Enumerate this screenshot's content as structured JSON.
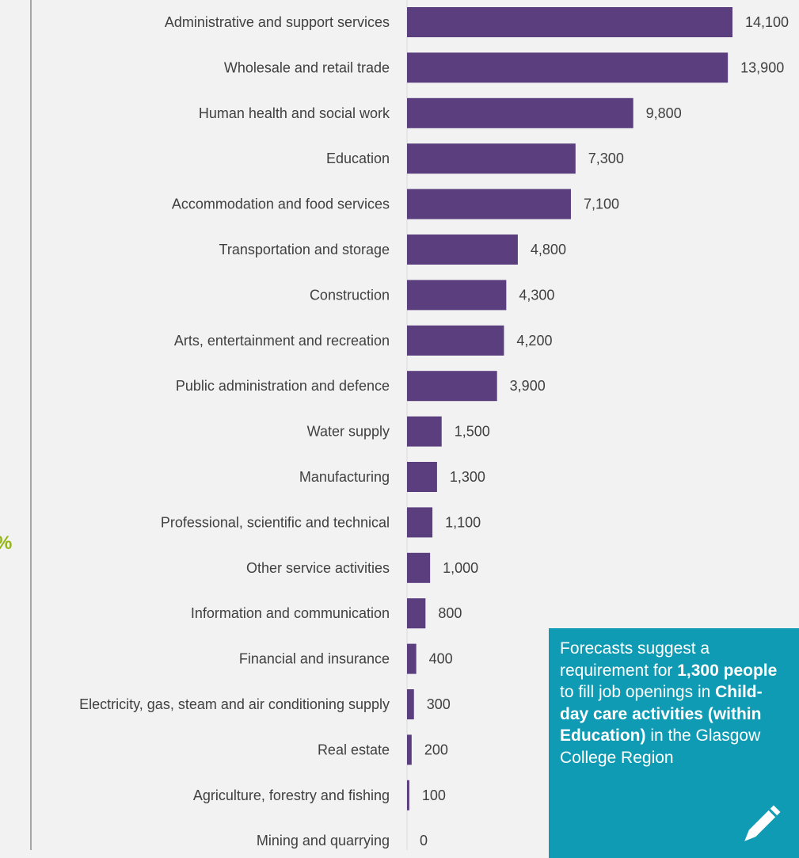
{
  "chart_data": {
    "type": "bar",
    "orientation": "horizontal",
    "categories": [
      "Administrative and support services",
      "Wholesale and retail trade",
      "Human health and social work",
      "Education",
      "Accommodation and food services",
      "Transportation and storage",
      "Construction",
      "Arts, entertainment and recreation",
      "Public administration and defence",
      "Water supply",
      "Manufacturing",
      "Professional, scientific and technical",
      "Other service activities",
      "Information and communication",
      "Financial and insurance",
      "Electricity, gas, steam and air conditioning supply",
      "Real estate",
      "Agriculture, forestry and fishing",
      "Mining and quarrying"
    ],
    "values": [
      14100,
      13900,
      9800,
      7300,
      7100,
      4800,
      4300,
      4200,
      3900,
      1500,
      1300,
      1100,
      1000,
      800,
      400,
      300,
      200,
      100,
      0
    ],
    "value_labels": [
      "14,100",
      "13,900",
      "9,800",
      "7,300",
      "7,100",
      "4,800",
      "4,300",
      "4,200",
      "3,900",
      "1,500",
      "1,300",
      "1,100",
      "1,000",
      "800",
      "400",
      "300",
      "200",
      "100",
      "0"
    ],
    "xlim": [
      0,
      14100
    ],
    "bar_color": "#5a3e7e",
    "grid": false,
    "title": "",
    "xlabel": "",
    "ylabel": ""
  },
  "side_text": {
    "percent_fragment": "%",
    "percent_color": "#95b61b"
  },
  "callout": {
    "background": "#0f9bb3",
    "icon": "pencil-icon",
    "parts": [
      {
        "text": "Forecasts suggest a requirement for ",
        "bold": false
      },
      {
        "text": "1,300 people",
        "bold": true
      },
      {
        "text": " to fill job openings in ",
        "bold": false
      },
      {
        "text": "Child-day care activities (within Education)",
        "bold": true
      },
      {
        "text": " in the Glasgow College Region",
        "bold": false
      }
    ]
  }
}
